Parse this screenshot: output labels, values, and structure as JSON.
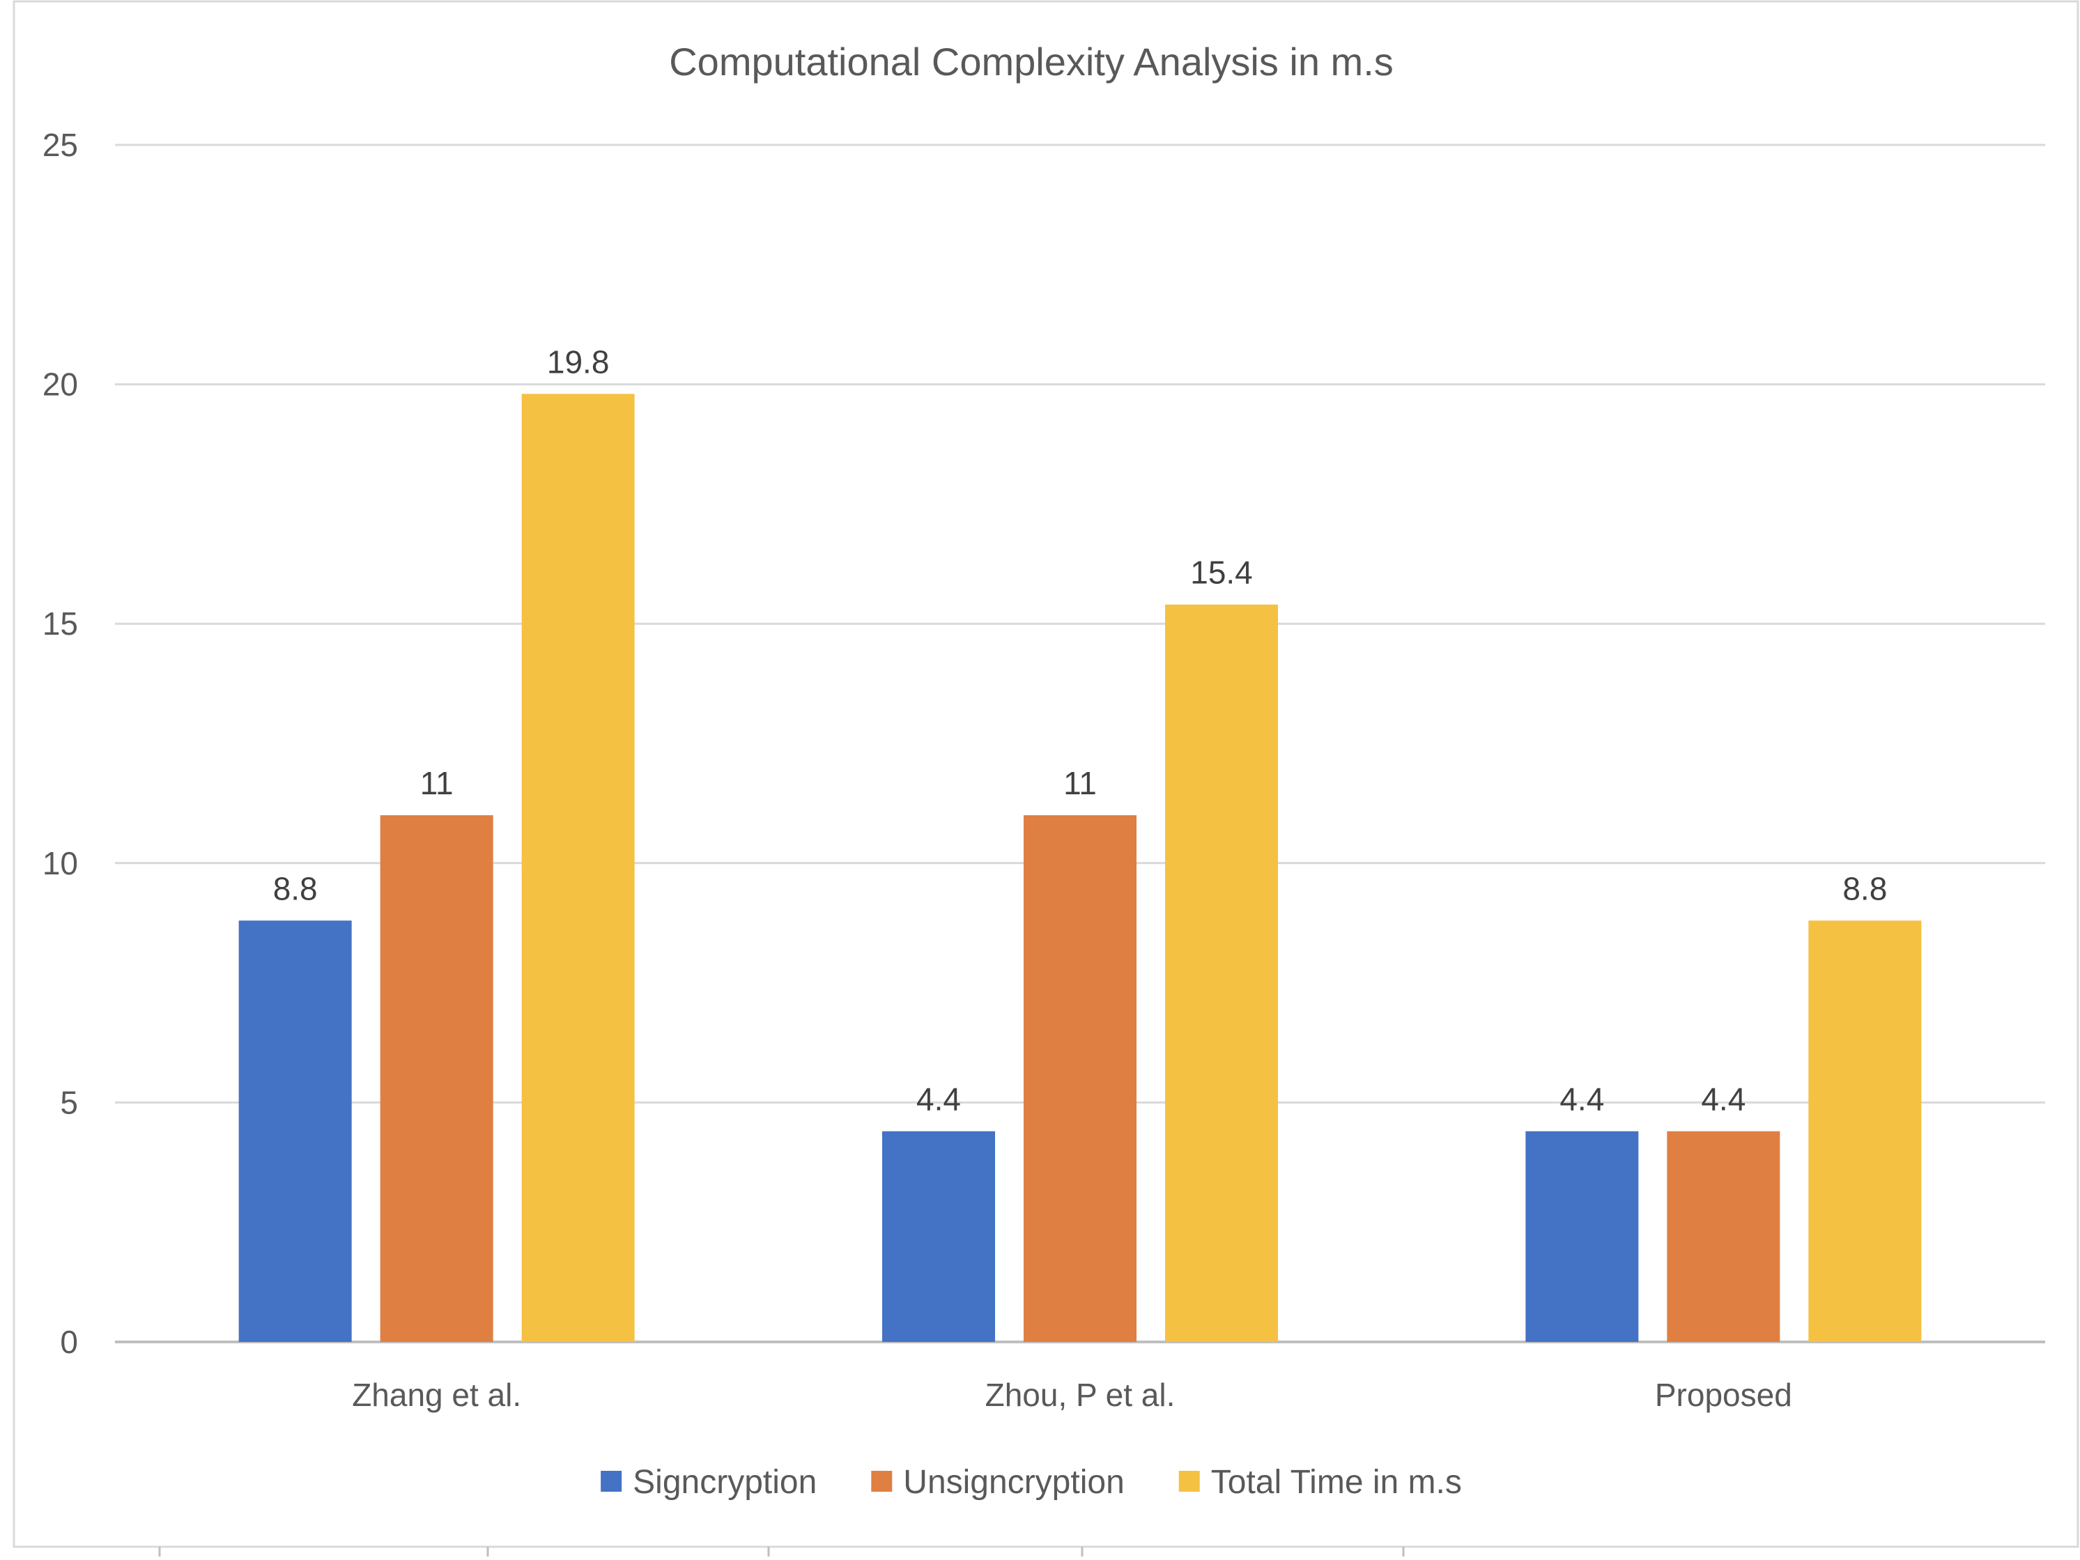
{
  "chart_data": {
    "type": "bar",
    "title": "Computational Complexity Analysis in m.s",
    "categories": [
      "Zhang et al.",
      "Zhou, P et al.",
      "Proposed"
    ],
    "series": [
      {
        "name": "Signcryption",
        "values": [
          8.8,
          4.4,
          4.4
        ],
        "color": "#4472C4"
      },
      {
        "name": "Unsigncryption",
        "values": [
          11,
          11,
          4.4
        ],
        "color": "#E07F42"
      },
      {
        "name": "Total Time in m.s",
        "values": [
          19.8,
          15.4,
          8.8
        ],
        "color": "#F5C142"
      }
    ],
    "ylim": [
      0,
      25
    ],
    "yticks": [
      "0",
      "5",
      "10",
      "15",
      "20",
      "25"
    ],
    "ytick_values": [
      0,
      5,
      10,
      15,
      20,
      25
    ],
    "xlabel": "",
    "ylabel": "",
    "grid": true,
    "legend": "bottom",
    "data_labels": true
  }
}
